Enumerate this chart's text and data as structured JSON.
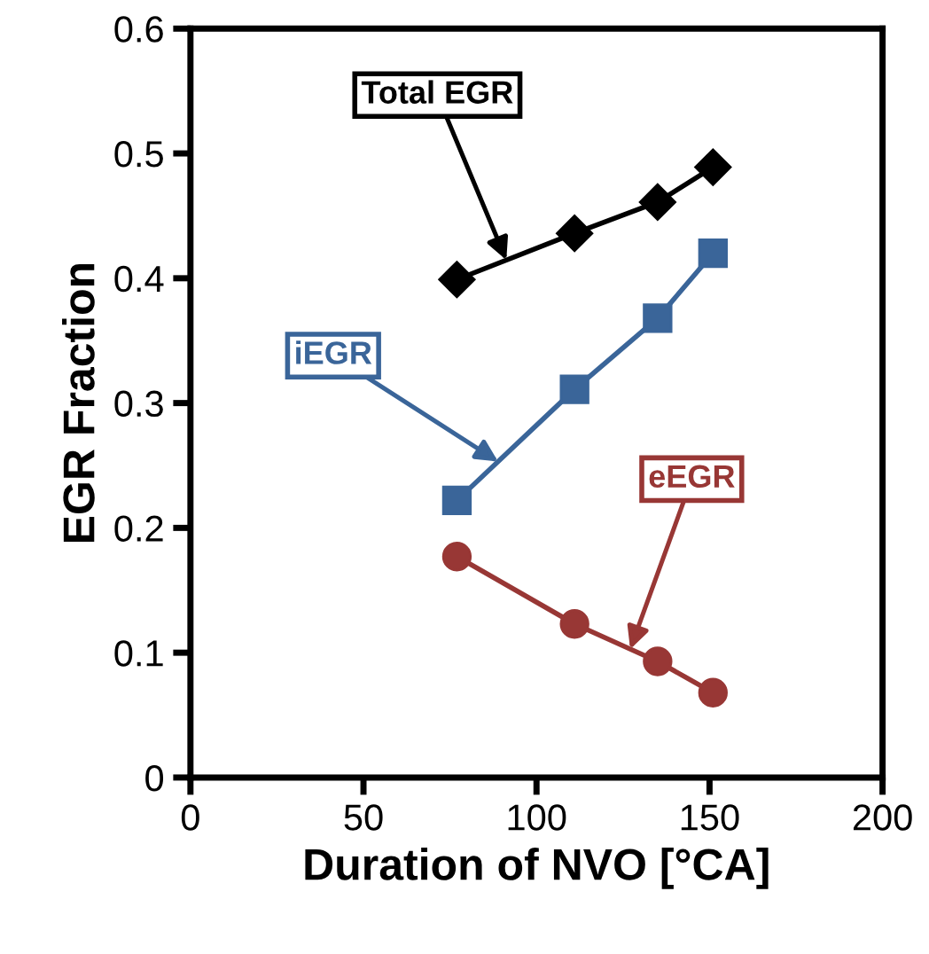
{
  "chart_data": {
    "type": "line",
    "xlabel": "Duration of NVO [°CA]",
    "ylabel": "EGR Fraction",
    "x": [
      77,
      111,
      135,
      151
    ],
    "series": [
      {
        "name": "Total EGR",
        "color": "#000000",
        "marker": "diamond",
        "values": [
          0.399,
          0.436,
          0.461,
          0.489
        ]
      },
      {
        "name": "iEGR",
        "color": "#3a6599",
        "marker": "square",
        "values": [
          0.222,
          0.311,
          0.368,
          0.42
        ]
      },
      {
        "name": "eEGR",
        "color": "#983735",
        "marker": "circle",
        "values": [
          0.177,
          0.123,
          0.093,
          0.068
        ]
      }
    ],
    "xlim": [
      0,
      200
    ],
    "xticks": [
      0,
      50,
      100,
      150,
      200
    ],
    "ylim": [
      0,
      0.6
    ],
    "yticks": [
      0,
      0.1,
      0.2,
      0.3,
      0.4,
      0.5,
      0.6
    ],
    "grid": false,
    "legend": false
  }
}
